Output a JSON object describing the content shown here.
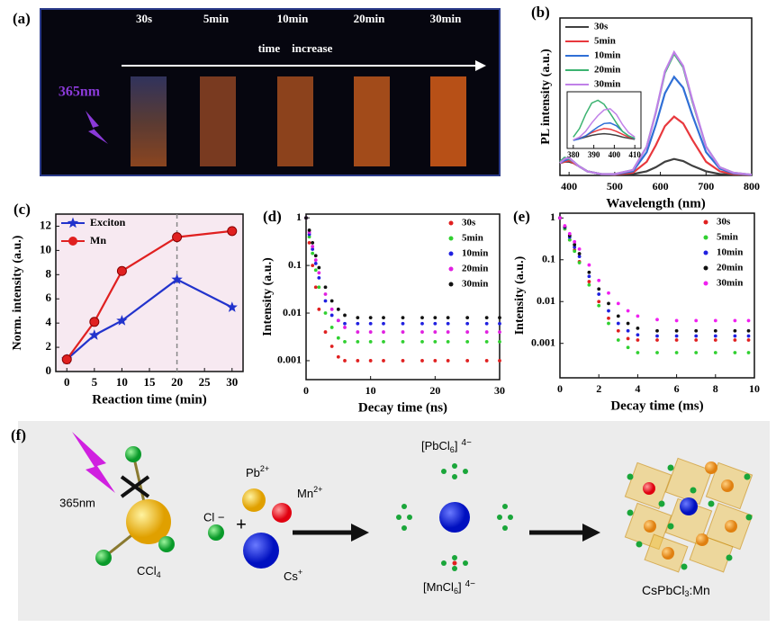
{
  "panel_a": {
    "panel_label": "(a)",
    "times": [
      "30s",
      "5min",
      "10min",
      "20min",
      "30min"
    ],
    "arrow_text": "time    increase",
    "excitation": "365nm"
  },
  "panel_f": {
    "panel_label": "(f)",
    "excitation": "365nm",
    "ccl4": {
      "base": "CCl",
      "sub": "4"
    },
    "cl": "Cl −",
    "plus": "+",
    "pb": {
      "base": "Pb",
      "sup": "2+"
    },
    "mn": {
      "base": "Mn",
      "sup": "2+"
    },
    "cs": {
      "base": "Cs",
      "sup": "+"
    },
    "pbcl6": {
      "base": "[PbCl",
      "sub": "6",
      "end": "]",
      "sup": "4−"
    },
    "mncl6": {
      "base": "[MnCl",
      "sub": "6",
      "end": "]",
      "sup": "4−"
    },
    "product": {
      "base": "CsPbCl",
      "sub": "3",
      "end": ":Mn"
    }
  },
  "chart_data": [
    {
      "type": "line",
      "panel_label": "(b)",
      "x_label": "Wavelength (nm)",
      "y_label": "PL intensity (a.u.)",
      "x": [
        380,
        390,
        400,
        410,
        420,
        440,
        470,
        500,
        540,
        570,
        590,
        610,
        630,
        650,
        670,
        700,
        730,
        760,
        800
      ],
      "xlim": [
        380,
        800
      ],
      "xticks": [
        400,
        500,
        600,
        700,
        800
      ],
      "ylim": [
        0,
        1.15
      ],
      "legend": "upper left",
      "series": [
        {
          "name": "30s",
          "color": "#404040",
          "values": [
            0.09,
            0.1,
            0.1,
            0.09,
            0.07,
            0.03,
            0.01,
            0.005,
            0.01,
            0.03,
            0.06,
            0.1,
            0.12,
            0.105,
            0.07,
            0.03,
            0.01,
            0.005,
            0.002
          ]
        },
        {
          "name": "5min",
          "color": "#e8383d",
          "values": [
            0.09,
            0.1,
            0.11,
            0.09,
            0.07,
            0.03,
            0.01,
            0.006,
            0.02,
            0.1,
            0.22,
            0.36,
            0.43,
            0.38,
            0.26,
            0.1,
            0.03,
            0.01,
            0.003
          ]
        },
        {
          "name": "10min",
          "color": "#2f6fd6",
          "values": [
            0.09,
            0.11,
            0.12,
            0.1,
            0.07,
            0.03,
            0.01,
            0.008,
            0.03,
            0.17,
            0.37,
            0.6,
            0.72,
            0.64,
            0.44,
            0.17,
            0.05,
            0.015,
            0.004
          ]
        },
        {
          "name": "20min",
          "color": "#3cb371",
          "values": [
            0.1,
            0.13,
            0.12,
            0.1,
            0.07,
            0.03,
            0.01,
            0.01,
            0.04,
            0.21,
            0.46,
            0.75,
            0.89,
            0.79,
            0.54,
            0.21,
            0.06,
            0.02,
            0.005
          ]
        },
        {
          "name": "30min",
          "color": "#c080e8",
          "values": [
            0.09,
            0.12,
            0.13,
            0.1,
            0.07,
            0.03,
            0.01,
            0.01,
            0.04,
            0.21,
            0.46,
            0.76,
            0.9,
            0.8,
            0.55,
            0.21,
            0.06,
            0.02,
            0.005
          ]
        }
      ]
    },
    {
      "type": "line",
      "x": [
        380,
        383,
        386,
        389,
        392,
        395,
        398,
        401,
        404,
        407,
        410
      ],
      "xlim": [
        377,
        413
      ],
      "xticks": [
        380,
        390,
        400,
        410
      ],
      "ylim": [
        0,
        1
      ],
      "series": [
        {
          "color": "#404040",
          "values": [
            0.15,
            0.17,
            0.2,
            0.23,
            0.25,
            0.26,
            0.25,
            0.23,
            0.2,
            0.18,
            0.16
          ]
        },
        {
          "color": "#e8383d",
          "values": [
            0.15,
            0.18,
            0.22,
            0.28,
            0.32,
            0.35,
            0.34,
            0.3,
            0.25,
            0.2,
            0.17
          ]
        },
        {
          "color": "#2f6fd6",
          "values": [
            0.14,
            0.17,
            0.22,
            0.3,
            0.38,
            0.44,
            0.45,
            0.4,
            0.3,
            0.22,
            0.17
          ]
        },
        {
          "color": "#3cb371",
          "values": [
            0.2,
            0.35,
            0.6,
            0.8,
            0.85,
            0.78,
            0.62,
            0.45,
            0.3,
            0.22,
            0.18
          ]
        },
        {
          "color": "#c080e8",
          "values": [
            0.15,
            0.2,
            0.3,
            0.45,
            0.58,
            0.68,
            0.7,
            0.6,
            0.42,
            0.28,
            0.2
          ]
        }
      ]
    },
    {
      "type": "line",
      "panel_label": "(c)",
      "x_label": "Reaction time (min)",
      "y_label": "Norm. intensity (a.u.)",
      "x": [
        0,
        5,
        10,
        20,
        30
      ],
      "xlim": [
        -2,
        32
      ],
      "xticks": [
        0,
        5,
        10,
        15,
        20,
        25,
        30
      ],
      "ylim": [
        0,
        13
      ],
      "yticks": [
        0,
        2,
        4,
        6,
        8,
        10,
        12
      ],
      "vline": 20,
      "background": "#f7e9f1",
      "legend": "upper left",
      "series": [
        {
          "name": "Exciton",
          "color": "#2233cc",
          "marker": "star",
          "values": [
            1,
            3,
            4.2,
            7.6,
            5.3
          ]
        },
        {
          "name": "Mn",
          "color": "#e02020",
          "marker": "circle",
          "values": [
            1,
            4.1,
            8.3,
            11.1,
            11.6
          ]
        }
      ]
    },
    {
      "type": "scatter",
      "panel_label": "(d)",
      "x_label": "Decay time (ns)",
      "y_label": "Intensity (a.u.)",
      "log_y": true,
      "x": [
        0,
        0.5,
        1,
        1.5,
        2,
        3,
        4,
        5,
        6,
        8,
        10,
        12,
        15,
        18,
        20,
        22,
        25,
        28,
        30
      ],
      "xlim": [
        0,
        30
      ],
      "xticks": [
        0,
        10,
        20,
        30
      ],
      "ylim": [
        0.0004,
        1.2
      ],
      "yticks": [
        0.001,
        0.01,
        0.1,
        1
      ],
      "legend": "upper right",
      "series": [
        {
          "name": "30s",
          "color": "#e02020",
          "values": [
            1,
            0.3,
            0.1,
            0.035,
            0.012,
            0.004,
            0.002,
            0.0012,
            0.001,
            0.001,
            0.001,
            0.001,
            0.001,
            0.001,
            0.001,
            0.001,
            0.001,
            0.001,
            0.001
          ]
        },
        {
          "name": "5min",
          "color": "#30d030",
          "values": [
            1,
            0.4,
            0.18,
            0.08,
            0.035,
            0.01,
            0.005,
            0.003,
            0.0025,
            0.0025,
            0.0025,
            0.0025,
            0.0025,
            0.0025,
            0.0025,
            0.0025,
            0.0025,
            0.0025,
            0.0025
          ]
        },
        {
          "name": "10min",
          "color": "#2020e0",
          "values": [
            1,
            0.45,
            0.22,
            0.11,
            0.055,
            0.018,
            0.009,
            0.007,
            0.006,
            0.006,
            0.006,
            0.006,
            0.006,
            0.006,
            0.006,
            0.006,
            0.006,
            0.006,
            0.006
          ]
        },
        {
          "name": "20min",
          "color": "#e020e0",
          "values": [
            1,
            0.5,
            0.25,
            0.13,
            0.07,
            0.025,
            0.012,
            0.007,
            0.005,
            0.004,
            0.004,
            0.004,
            0.004,
            0.004,
            0.004,
            0.004,
            0.004,
            0.004,
            0.004
          ]
        },
        {
          "name": "30min",
          "color": "#111111",
          "values": [
            1,
            0.55,
            0.3,
            0.16,
            0.09,
            0.035,
            0.018,
            0.012,
            0.009,
            0.008,
            0.008,
            0.008,
            0.008,
            0.008,
            0.008,
            0.008,
            0.008,
            0.008,
            0.008
          ]
        }
      ]
    },
    {
      "type": "scatter",
      "panel_label": "(e)",
      "x_label": "Decay time (ms)",
      "y_label": "Intensity (a.u.)",
      "log_y": true,
      "x": [
        0,
        0.25,
        0.5,
        0.75,
        1,
        1.5,
        2,
        2.5,
        3,
        3.5,
        4,
        5,
        6,
        7,
        8,
        9,
        9.7
      ],
      "xlim": [
        0,
        10
      ],
      "xticks": [
        0,
        2,
        4,
        6,
        8,
        10
      ],
      "ylim": [
        0.00015,
        1.3
      ],
      "yticks": [
        0.001,
        0.01,
        0.1,
        1
      ],
      "legend": "upper right",
      "series": [
        {
          "name": "30s",
          "color": "#e02020",
          "values": [
            1,
            0.55,
            0.3,
            0.17,
            0.09,
            0.03,
            0.01,
            0.004,
            0.002,
            0.0013,
            0.0012,
            0.0012,
            0.0012,
            0.0012,
            0.0012,
            0.0012,
            0.0012
          ]
        },
        {
          "name": "5min",
          "color": "#30d030",
          "values": [
            1,
            0.55,
            0.3,
            0.16,
            0.085,
            0.025,
            0.008,
            0.003,
            0.0012,
            0.0008,
            0.0006,
            0.0006,
            0.0006,
            0.0006,
            0.0006,
            0.0006,
            0.0006
          ]
        },
        {
          "name": "10min",
          "color": "#2020e0",
          "values": [
            1,
            0.6,
            0.35,
            0.2,
            0.12,
            0.04,
            0.015,
            0.006,
            0.003,
            0.002,
            0.0016,
            0.0015,
            0.0015,
            0.0015,
            0.0015,
            0.0015,
            0.0015
          ]
        },
        {
          "name": "20min",
          "color": "#111111",
          "values": [
            1,
            0.62,
            0.38,
            0.23,
            0.14,
            0.05,
            0.02,
            0.009,
            0.0045,
            0.003,
            0.0023,
            0.002,
            0.002,
            0.002,
            0.002,
            0.002,
            0.002
          ]
        },
        {
          "name": "30min",
          "color": "#f020f0",
          "values": [
            1,
            0.65,
            0.42,
            0.27,
            0.18,
            0.075,
            0.032,
            0.016,
            0.009,
            0.006,
            0.0045,
            0.0037,
            0.0035,
            0.0035,
            0.0035,
            0.0035,
            0.0035
          ]
        }
      ]
    }
  ]
}
